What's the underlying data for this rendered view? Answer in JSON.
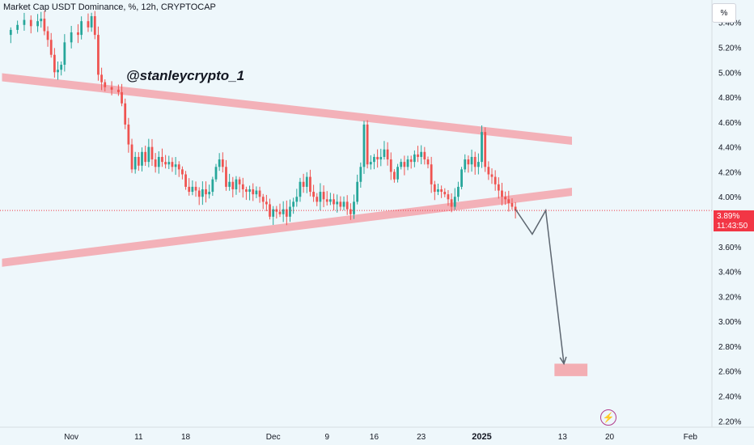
{
  "header": {
    "title": "Market Cap USDT Dominance, %, 12h, CRYPTOCAP",
    "unit_label": "%"
  },
  "watermark": "@stanleycrypto_1",
  "price_badge": {
    "value": "3.89%",
    "countdown": "11:43:50",
    "color": "#f23645"
  },
  "colors": {
    "up": "#26a69a",
    "down": "#ef5350",
    "zone": "#f3a5ab",
    "projection": "#5d6670",
    "background": "#eef7fb"
  },
  "icons": {
    "flash": "lightning-icon"
  },
  "chart_data": {
    "type": "candlestick",
    "symbol": "Market Cap USDT Dominance",
    "timeframe": "12h",
    "ylim": [
      2.15,
      5.58
    ],
    "y_ticks": [
      "5.40%",
      "5.20%",
      "5.00%",
      "4.80%",
      "4.60%",
      "4.40%",
      "4.20%",
      "4.00%",
      "3.60%",
      "3.40%",
      "3.20%",
      "3.00%",
      "2.80%",
      "2.60%",
      "2.40%",
      "2.20%"
    ],
    "y_tick_values": [
      5.4,
      5.2,
      5.0,
      4.8,
      4.6,
      4.4,
      4.2,
      4.0,
      3.6,
      3.4,
      3.2,
      3.0,
      2.8,
      2.6,
      2.4,
      2.2
    ],
    "x_ticks": [
      {
        "label": "Nov",
        "day": 0,
        "bold": false
      },
      {
        "label": "11",
        "day": 10,
        "bold": false
      },
      {
        "label": "18",
        "day": 17,
        "bold": false
      },
      {
        "label": "Dec",
        "day": 30,
        "bold": false
      },
      {
        "label": "9",
        "day": 38,
        "bold": false
      },
      {
        "label": "16",
        "day": 45,
        "bold": false
      },
      {
        "label": "23",
        "day": 52,
        "bold": false
      },
      {
        "label": "2025",
        "day": 61,
        "bold": true
      },
      {
        "label": "13",
        "day": 73,
        "bold": false
      },
      {
        "label": "20",
        "day": 80,
        "bold": false
      },
      {
        "label": "Feb",
        "day": 92,
        "bold": false
      }
    ],
    "x_range_days": [
      -10.6,
      95.2
    ],
    "close_path": [
      [
        -10.5,
        5.3
      ],
      [
        -9,
        5.34
      ],
      [
        -8,
        5.38
      ],
      [
        -7,
        5.42
      ],
      [
        -6,
        5.37
      ],
      [
        -5,
        5.41
      ],
      [
        -4.5,
        5.43
      ],
      [
        -4,
        5.33
      ],
      [
        -3.5,
        5.26
      ],
      [
        -3,
        5.14
      ],
      [
        -2.5,
        5.0
      ],
      [
        -2,
        5.02
      ],
      [
        -1.5,
        5.06
      ],
      [
        -1,
        5.24
      ],
      [
        0,
        5.32
      ],
      [
        1,
        5.3
      ],
      [
        1.5,
        5.41
      ],
      [
        2.5,
        5.36
      ],
      [
        3,
        5.45
      ],
      [
        3.5,
        5.3
      ],
      [
        4,
        4.98
      ],
      [
        4.5,
        4.92
      ],
      [
        5,
        4.88
      ],
      [
        6,
        4.86
      ],
      [
        7,
        4.84
      ],
      [
        7.5,
        4.75
      ],
      [
        8,
        4.58
      ],
      [
        8.5,
        4.42
      ],
      [
        9,
        4.22
      ],
      [
        9.5,
        4.32
      ],
      [
        10,
        4.25
      ],
      [
        10.5,
        4.36
      ],
      [
        11,
        4.28
      ],
      [
        11.5,
        4.4
      ],
      [
        12,
        4.3
      ],
      [
        12.5,
        4.24
      ],
      [
        13,
        4.32
      ],
      [
        13.5,
        4.28
      ],
      [
        14,
        4.26
      ],
      [
        14.5,
        4.28
      ],
      [
        15,
        4.24
      ],
      [
        15.5,
        4.26
      ],
      [
        16,
        4.22
      ],
      [
        16.5,
        4.18
      ],
      [
        17,
        4.08
      ],
      [
        17.5,
        4.04
      ],
      [
        18,
        4.08
      ],
      [
        18.5,
        4.05
      ],
      [
        19,
        4.0
      ],
      [
        19.5,
        4.06
      ],
      [
        20,
        4.02
      ],
      [
        20.5,
        4.04
      ],
      [
        21,
        4.14
      ],
      [
        21.5,
        4.24
      ],
      [
        22,
        4.3
      ],
      [
        22.5,
        4.24
      ],
      [
        23,
        4.08
      ],
      [
        23.5,
        4.12
      ],
      [
        24,
        4.06
      ],
      [
        24.5,
        4.14
      ],
      [
        25,
        4.1
      ],
      [
        25.5,
        4.06
      ],
      [
        26,
        4.04
      ],
      [
        26.5,
        4.06
      ],
      [
        27,
        4.02
      ],
      [
        27.5,
        4.05
      ],
      [
        28,
        4.0
      ],
      [
        28.5,
        3.96
      ],
      [
        29,
        3.94
      ],
      [
        29.5,
        3.84
      ],
      [
        30,
        3.9
      ],
      [
        30.5,
        3.88
      ],
      [
        31,
        3.86
      ],
      [
        31.5,
        3.9
      ],
      [
        32,
        3.84
      ],
      [
        32.5,
        3.92
      ],
      [
        33,
        3.96
      ],
      [
        33.5,
        4.0
      ],
      [
        34,
        4.12
      ],
      [
        34.5,
        4.08
      ],
      [
        35,
        4.16
      ],
      [
        35.5,
        4.04
      ],
      [
        36,
        4.0
      ],
      [
        36.5,
        3.96
      ],
      [
        37,
        4.04
      ],
      [
        37.5,
        3.98
      ],
      [
        38,
        3.96
      ],
      [
        38.5,
        3.98
      ],
      [
        39,
        3.94
      ],
      [
        39.5,
        3.96
      ],
      [
        40,
        3.92
      ],
      [
        40.5,
        3.96
      ],
      [
        41,
        3.9
      ],
      [
        41.5,
        3.86
      ],
      [
        42,
        3.96
      ],
      [
        42.5,
        4.12
      ],
      [
        43,
        4.24
      ],
      [
        43.5,
        4.58
      ],
      [
        44,
        4.26
      ],
      [
        44.5,
        4.28
      ],
      [
        45,
        4.32
      ],
      [
        45.5,
        4.3
      ],
      [
        46,
        4.32
      ],
      [
        46.5,
        4.38
      ],
      [
        47,
        4.3
      ],
      [
        47.5,
        4.2
      ],
      [
        48,
        4.14
      ],
      [
        48.5,
        4.24
      ],
      [
        49,
        4.28
      ],
      [
        49.5,
        4.24
      ],
      [
        50,
        4.3
      ],
      [
        50.5,
        4.28
      ],
      [
        51,
        4.34
      ],
      [
        51.5,
        4.32
      ],
      [
        52,
        4.36
      ],
      [
        52.5,
        4.3
      ],
      [
        53,
        4.26
      ],
      [
        53.5,
        4.1
      ],
      [
        54,
        4.04
      ],
      [
        54.5,
        4.06
      ],
      [
        55,
        4.04
      ],
      [
        55.5,
        4.02
      ],
      [
        56,
        3.98
      ],
      [
        56.5,
        3.92
      ],
      [
        57,
        4.0
      ],
      [
        57.5,
        4.08
      ],
      [
        58,
        4.22
      ],
      [
        58.5,
        4.3
      ],
      [
        59,
        4.26
      ],
      [
        59.5,
        4.32
      ],
      [
        60,
        4.24
      ],
      [
        60.5,
        4.28
      ],
      [
        61,
        4.52
      ],
      [
        61.5,
        4.24
      ],
      [
        62,
        4.18
      ],
      [
        62.5,
        4.16
      ],
      [
        63,
        4.1
      ],
      [
        63.5,
        4.05
      ],
      [
        64,
        4.0
      ],
      [
        64.5,
        3.98
      ],
      [
        65,
        3.95
      ],
      [
        65.5,
        3.92
      ],
      [
        66,
        3.89
      ]
    ],
    "price_line": 3.89,
    "annotations": [
      {
        "type": "zone",
        "label": "upper trendline",
        "from": {
          "day": -10.3,
          "value": 4.96
        },
        "to": {
          "day": 74.4,
          "value": 4.45
        }
      },
      {
        "type": "zone",
        "label": "lower trendline",
        "from": {
          "day": -10.3,
          "value": 3.47
        },
        "to": {
          "day": 74.4,
          "value": 4.04
        }
      },
      {
        "type": "projection",
        "points": [
          {
            "day": 66,
            "value": 3.9
          },
          {
            "day": 68.5,
            "value": 3.7
          },
          {
            "day": 70.5,
            "value": 3.89
          },
          {
            "day": 73.2,
            "value": 2.66
          }
        ]
      },
      {
        "type": "target-zone",
        "from": {
          "day": 71.8,
          "value": 2.66
        },
        "to": {
          "day": 76.7,
          "value": 2.56
        }
      }
    ]
  }
}
